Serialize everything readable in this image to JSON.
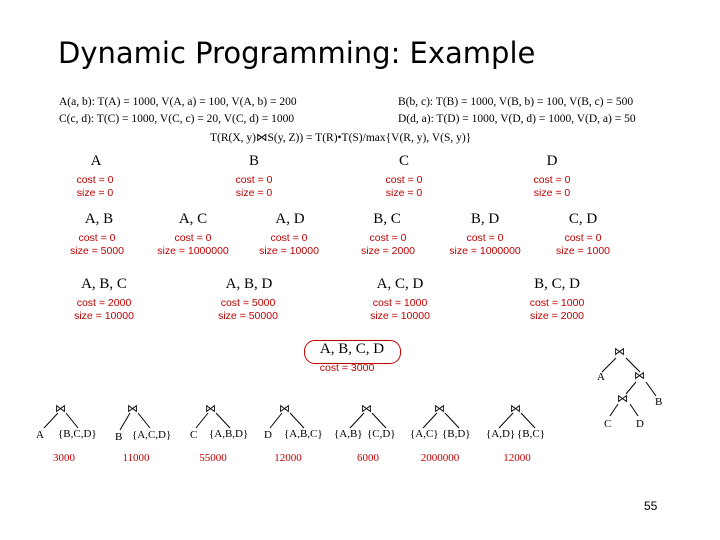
{
  "title": "Dynamic Programming: Example",
  "relations": {
    "ab": "A(a, b): T(A) = 1000, V(A, a) = 100, V(A, b) = 200",
    "bc": "B(b, c): T(B) = 1000,  V(B, b) = 100, V(B, c) = 500",
    "cd": "C(c, d): T(C) = 1000,  V(C, c) = 20,  V(C, d) = 1000",
    "da": "D(d, a): T(D) = 1000, V(D, d) = 1000, V(D, a) = 50",
    "formula": "T(R(X, y)⋈S(y, Z)) = T(R)•T(S)/max{V(R, y), V(S, y)}"
  },
  "singles": [
    {
      "label": "A",
      "cost": "cost = 0",
      "size": "size = 0"
    },
    {
      "label": "B",
      "cost": "cost = 0",
      "size": "size = 0"
    },
    {
      "label": "C",
      "cost": "cost = 0",
      "size": "size = 0"
    },
    {
      "label": "D",
      "cost": "cost = 0",
      "size": "size = 0"
    }
  ],
  "pairs": [
    {
      "label": "A, B",
      "cost": "cost = 0",
      "size": "size = 5000"
    },
    {
      "label": "A, C",
      "cost": "cost = 0",
      "size": "size = 1000000"
    },
    {
      "label": "A, D",
      "cost": "cost = 0",
      "size": "size = 10000"
    },
    {
      "label": "B, C",
      "cost": "cost = 0",
      "size": "size = 2000"
    },
    {
      "label": "B, D",
      "cost": "cost = 0",
      "size": "size = 1000000"
    },
    {
      "label": "C, D",
      "cost": "cost = 0",
      "size": "size = 1000"
    }
  ],
  "triples": [
    {
      "label": "A, B, C",
      "cost": "cost = 2000",
      "size": "size = 10000"
    },
    {
      "label": "A, B, D",
      "cost": "cost = 5000",
      "size": "size = 50000"
    },
    {
      "label": "A, C, D",
      "cost": "cost = 1000",
      "size": "size = 10000"
    },
    {
      "label": "B, C, D",
      "cost": "cost = 1000",
      "size": "size = 2000"
    }
  ],
  "full": {
    "label": "A, B, C, D",
    "cost": "cost = 3000"
  },
  "plans": [
    {
      "left": "A",
      "right": "{B,C,D}",
      "cost": "3000"
    },
    {
      "left": "B",
      "right": "{A,C,D}",
      "cost": "11000"
    },
    {
      "left": "C",
      "right": "{A,B,D}",
      "cost": "55000"
    },
    {
      "left": "D",
      "right": "{A,B,C}",
      "cost": "12000"
    },
    {
      "left": "{A,B}",
      "right": "{C,D}",
      "cost": "6000"
    },
    {
      "left": "{A,C}",
      "right": "{B,D}",
      "cost": "2000000"
    },
    {
      "left": "{A,D}",
      "right": "{B,C}",
      "cost": "12000"
    }
  ],
  "best_tree": {
    "leaf1": "A",
    "leaf2": "B",
    "leaf3": "C",
    "leaf4": "D"
  },
  "join_symbol": "⋈",
  "page_number": "55",
  "colors": {
    "accent": "#c00000",
    "text": "#000000"
  }
}
